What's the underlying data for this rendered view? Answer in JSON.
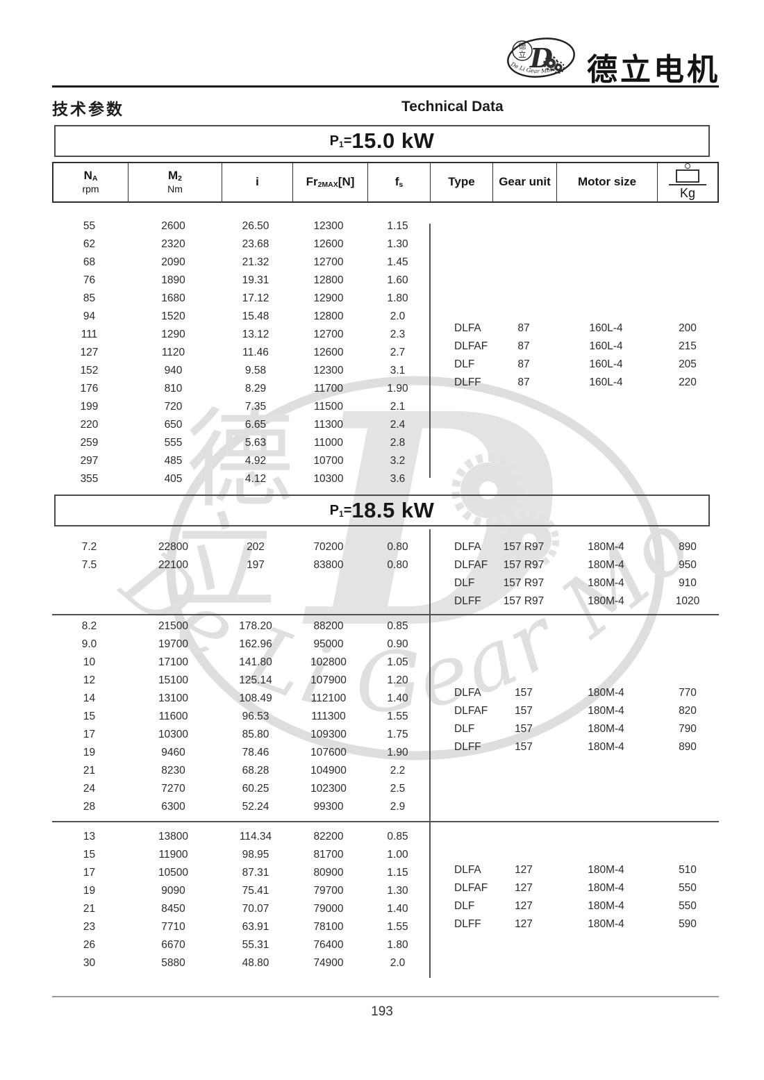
{
  "brand": {
    "name_cn": "德立电机",
    "logo_cn_top": "德",
    "logo_cn_bottom": "立",
    "logo_letter": "D",
    "logo_arc_text": "De Li Gear Motor"
  },
  "page_header": {
    "title_cn": "技术参数",
    "title_en": "Technical Data"
  },
  "columns": {
    "na": {
      "main": "N",
      "sub": "A",
      "unit": "rpm"
    },
    "m2": {
      "main": "M",
      "sub": "2",
      "unit": "Nm"
    },
    "i": "i",
    "fr": {
      "main": "Fr",
      "sub": "2MAX",
      "tail": "[N]"
    },
    "fs": {
      "main": "f",
      "sub": "s"
    },
    "type": "Type",
    "gear_unit": "Gear unit",
    "motor_size": "Motor size",
    "kg": "Kg"
  },
  "sections": [
    {
      "power": {
        "p": "P",
        "sub": "1",
        "eq": "=",
        "value": "15.0 kW"
      },
      "blocks": [
        {
          "rows": [
            [
              "55",
              "2600",
              "26.50",
              "12300",
              "1.15"
            ],
            [
              "62",
              "2320",
              "23.68",
              "12600",
              "1.30"
            ],
            [
              "68",
              "2090",
              "21.32",
              "12700",
              "1.45"
            ],
            [
              "76",
              "1890",
              "19.31",
              "12800",
              "1.60"
            ],
            [
              "85",
              "1680",
              "17.12",
              "12900",
              "1.80"
            ],
            [
              "94",
              "1520",
              "15.48",
              "12800",
              "2.0"
            ],
            [
              "111",
              "1290",
              "13.12",
              "12700",
              "2.3"
            ],
            [
              "127",
              "1120",
              "11.46",
              "12600",
              "2.7"
            ],
            [
              "152",
              "940",
              "9.58",
              "12300",
              "3.1"
            ],
            [
              "176",
              "810",
              "8.29",
              "11700",
              "1.90"
            ],
            [
              "199",
              "720",
              "7.35",
              "11500",
              "2.1"
            ],
            [
              "220",
              "650",
              "6.65",
              "11300",
              "2.4"
            ],
            [
              "259",
              "555",
              "5.63",
              "11000",
              "2.8"
            ],
            [
              "297",
              "485",
              "4.92",
              "10700",
              "3.2"
            ],
            [
              "355",
              "405",
              "4.12",
              "10300",
              "3.6"
            ]
          ],
          "types": [
            [
              "DLFA",
              "87",
              "160L-4",
              "200"
            ],
            [
              "DLFAF",
              "87",
              "160L-4",
              "215"
            ],
            [
              "DLF",
              "87",
              "160L-4",
              "205"
            ],
            [
              "DLFF",
              "87",
              "160L-4",
              "220"
            ]
          ]
        }
      ]
    },
    {
      "power": {
        "p": "P",
        "sub": "1",
        "eq": "=",
        "value": "18.5 kW"
      },
      "blocks": [
        {
          "rows": [
            [
              "7.2",
              "22800",
              "202",
              "70200",
              "0.80"
            ],
            [
              "7.5",
              "22100",
              "197",
              "83800",
              "0.80"
            ]
          ],
          "types": [
            [
              "DLFA",
              "157 R97",
              "180M-4",
              "890"
            ],
            [
              "DLFAF",
              "157 R97",
              "180M-4",
              "950"
            ],
            [
              "DLF",
              "157 R97",
              "180M-4",
              "910"
            ],
            [
              "DLFF",
              "157 R97",
              "180M-4",
              "1020"
            ]
          ]
        },
        {
          "rows": [
            [
              "8.2",
              "21500",
              "178.20",
              "88200",
              "0.85"
            ],
            [
              "9.0",
              "19700",
              "162.96",
              "95000",
              "0.90"
            ],
            [
              "10",
              "17100",
              "141.80",
              "102800",
              "1.05"
            ],
            [
              "12",
              "15100",
              "125.14",
              "107900",
              "1.20"
            ],
            [
              "14",
              "13100",
              "108.49",
              "112100",
              "1.40"
            ],
            [
              "15",
              "11600",
              "96.53",
              "111300",
              "1.55"
            ],
            [
              "17",
              "10300",
              "85.80",
              "109300",
              "1.75"
            ],
            [
              "19",
              "9460",
              "78.46",
              "107600",
              "1.90"
            ],
            [
              "21",
              "8230",
              "68.28",
              "104900",
              "2.2"
            ],
            [
              "24",
              "7270",
              "60.25",
              "102300",
              "2.5"
            ],
            [
              "28",
              "6300",
              "52.24",
              "99300",
              "2.9"
            ]
          ],
          "types": [
            [
              "DLFA",
              "157",
              "180M-4",
              "770"
            ],
            [
              "DLFAF",
              "157",
              "180M-4",
              "820"
            ],
            [
              "DLF",
              "157",
              "180M-4",
              "790"
            ],
            [
              "DLFF",
              "157",
              "180M-4",
              "890"
            ]
          ]
        },
        {
          "rows": [
            [
              "13",
              "13800",
              "114.34",
              "82200",
              "0.85"
            ],
            [
              "15",
              "11900",
              "98.95",
              "81700",
              "1.00"
            ],
            [
              "17",
              "10500",
              "87.31",
              "80900",
              "1.15"
            ],
            [
              "19",
              "9090",
              "75.41",
              "79700",
              "1.30"
            ],
            [
              "21",
              "8450",
              "70.07",
              "79000",
              "1.40"
            ],
            [
              "23",
              "7710",
              "63.91",
              "78100",
              "1.55"
            ],
            [
              "26",
              "6670",
              "55.31",
              "76400",
              "1.80"
            ],
            [
              "30",
              "5880",
              "48.80",
              "74900",
              "2.0"
            ]
          ],
          "types": [
            [
              "DLFA",
              "127",
              "180M-4",
              "510"
            ],
            [
              "DLFAF",
              "127",
              "180M-4",
              "550"
            ],
            [
              "DLF",
              "127",
              "180M-4",
              "550"
            ],
            [
              "DLFF",
              "127",
              "180M-4",
              "590"
            ]
          ]
        }
      ]
    }
  ],
  "footer": {
    "page_number": "193"
  },
  "colors": {
    "text": "#262626",
    "rule": "#1b1b1b",
    "footer_rule": "#9b9b9b",
    "watermark": "#e2e2e2"
  }
}
